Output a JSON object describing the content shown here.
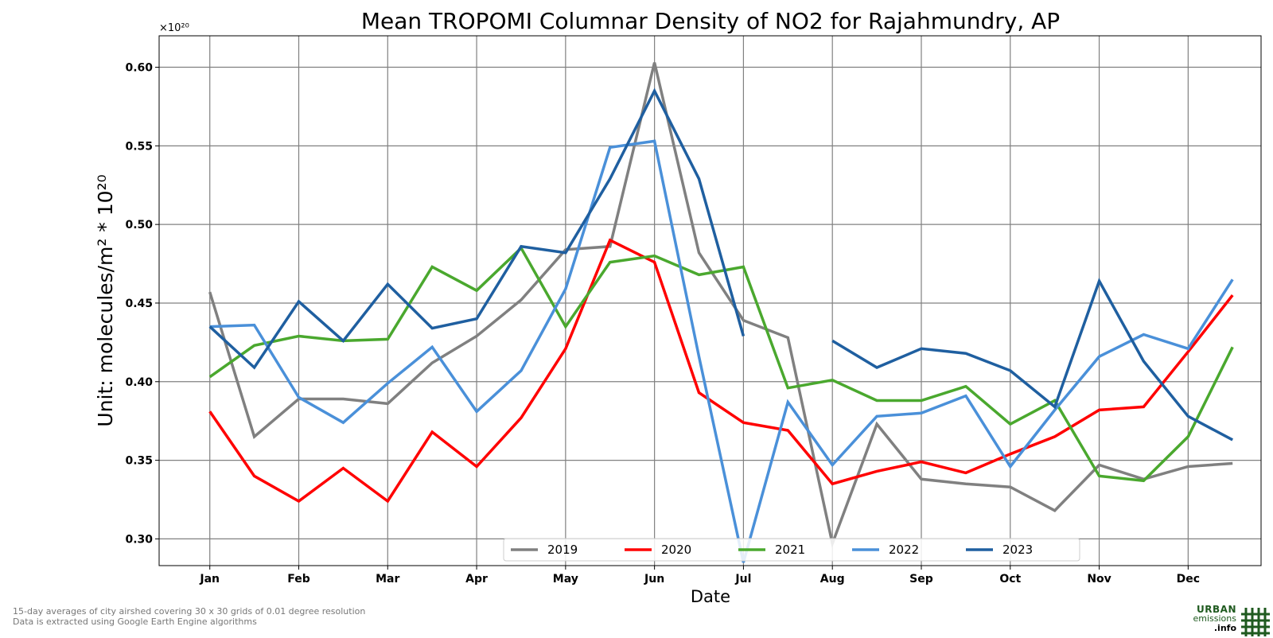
{
  "footnote": {
    "line1": "15-day averages of city airshed covering 30 x 30 grids of 0.01 degree resolution",
    "line2": "Data is extracted using Google Earth Engine algorithms"
  },
  "logo": {
    "line1": "URBAN",
    "line2": "emissions",
    "line3": ".info",
    "icon": "grid-hash-icon",
    "color": "#1f5a1f"
  },
  "chart_data": {
    "type": "line",
    "title": "Mean TROPOMI Columnar Density of NO2 for Rajahmundry, AP",
    "xlabel": "Date",
    "ylabel": "Unit: molecules/m² * 10²⁰",
    "y_multiplier": "×10²⁰",
    "ylim": [
      0.283,
      0.62
    ],
    "yticks": [
      0.3,
      0.35,
      0.4,
      0.45,
      0.5,
      0.55,
      0.6
    ],
    "ytick_labels": [
      "0.30",
      "0.35",
      "0.40",
      "0.45",
      "0.50",
      "0.55",
      "0.60"
    ],
    "xlim": [
      0.43,
      12.82
    ],
    "xticks": [
      1,
      2,
      3,
      4,
      5,
      6,
      7,
      8,
      9,
      10,
      11,
      12
    ],
    "xtick_labels": [
      "Jan",
      "Feb",
      "Mar",
      "Apr",
      "May",
      "Jun",
      "Jul",
      "Aug",
      "Sep",
      "Oct",
      "Nov",
      "Dec"
    ],
    "grid": true,
    "legend_position": "bottom-center",
    "x": [
      1,
      1.5,
      2,
      2.5,
      3,
      3.5,
      4,
      4.5,
      5,
      5.5,
      6,
      6.5,
      7,
      7.5,
      8,
      8.5,
      9,
      9.5,
      10,
      10.5,
      11,
      11.5,
      12,
      12.5
    ],
    "series": [
      {
        "name": "2019",
        "color": "#808080",
        "values": [
          0.457,
          0.365,
          0.389,
          0.389,
          0.386,
          0.412,
          0.429,
          0.452,
          0.484,
          0.486,
          0.603,
          0.482,
          0.439,
          0.428,
          0.297,
          0.373,
          0.338,
          0.335,
          0.333,
          0.318,
          0.347,
          0.338,
          0.346,
          0.348
        ]
      },
      {
        "name": "2020",
        "color": "#ff0000",
        "values": [
          0.381,
          0.34,
          0.324,
          0.345,
          0.324,
          0.368,
          0.346,
          0.377,
          0.421,
          0.49,
          0.476,
          0.393,
          0.374,
          0.369,
          0.335,
          0.343,
          0.349,
          0.342,
          0.354,
          0.365,
          0.382,
          0.384,
          0.419,
          0.455
        ]
      },
      {
        "name": "2021",
        "color": "#4aa82e",
        "values": [
          0.403,
          0.423,
          0.429,
          0.426,
          0.427,
          0.473,
          0.458,
          0.485,
          0.435,
          0.476,
          0.48,
          0.468,
          0.473,
          0.396,
          0.401,
          0.388,
          0.388,
          0.397,
          0.373,
          0.388,
          0.34,
          0.337,
          0.365,
          0.422
        ]
      },
      {
        "name": "2022",
        "color": "#4a90d9",
        "values": [
          0.435,
          0.436,
          0.39,
          0.374,
          0.399,
          0.422,
          0.381,
          0.407,
          0.459,
          0.549,
          0.553,
          0.416,
          0.285,
          0.387,
          0.347,
          0.378,
          0.38,
          0.391,
          0.346,
          0.382,
          0.416,
          0.43,
          0.421,
          0.465
        ]
      },
      {
        "name": "2023",
        "color": "#1f5fa0",
        "values": [
          0.435,
          0.409,
          0.451,
          0.426,
          0.462,
          0.434,
          0.44,
          0.486,
          0.482,
          0.529,
          0.585,
          0.529,
          0.429,
          null,
          0.426,
          0.409,
          0.421,
          0.418,
          0.407,
          0.384,
          0.464,
          0.413,
          0.378,
          0.363
        ]
      }
    ]
  }
}
